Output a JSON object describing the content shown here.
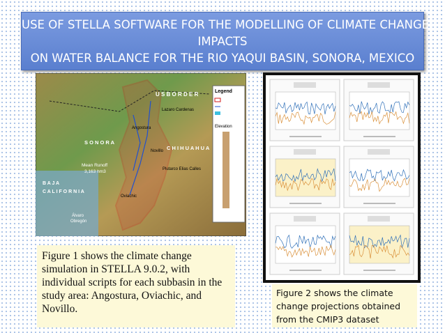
{
  "title": {
    "lines": [
      "USE OF STELLA SOFTWARE FOR THE MODELLING OF CLIMATE CHANGE",
      "IMPACTS",
      "ON WATER BALANCE FOR THE RIO YAQUI BASIN, SONORA, MEXICO"
    ]
  },
  "figure1": {
    "labels": {
      "us_border": "U S  B O R D E R",
      "sonora": "S O N O R A",
      "chihuahua": "C H I H U A H U A",
      "baja": "B A J A",
      "california": "C A L I F O R N I A",
      "runoff": "Mean Runoff",
      "runoff_value": "3,163 hm3",
      "angostura": "Angostura",
      "lazaro": "Lazaro Cardenas",
      "novillo": "Novillo",
      "plutarco": "Plutarco Elias Calles",
      "oviachic": "Oviachic",
      "alvaro": "Álvaro",
      "obregon": "Obregón",
      "legend": "Legend",
      "elevation": "Elevation"
    }
  },
  "caption1": {
    "lines": [
      "Figure 1 shows the climate change",
      "simulation in STELLA 9.0.2, with",
      "individual scripts for each subbasin in the",
      "study area: Angostura, Oviachic, and",
      "Novillo."
    ]
  },
  "caption2": {
    "lines": [
      "Figure 2 shows the climate",
      "change projections obtained",
      "from the CMIP3 dataset"
    ]
  }
}
